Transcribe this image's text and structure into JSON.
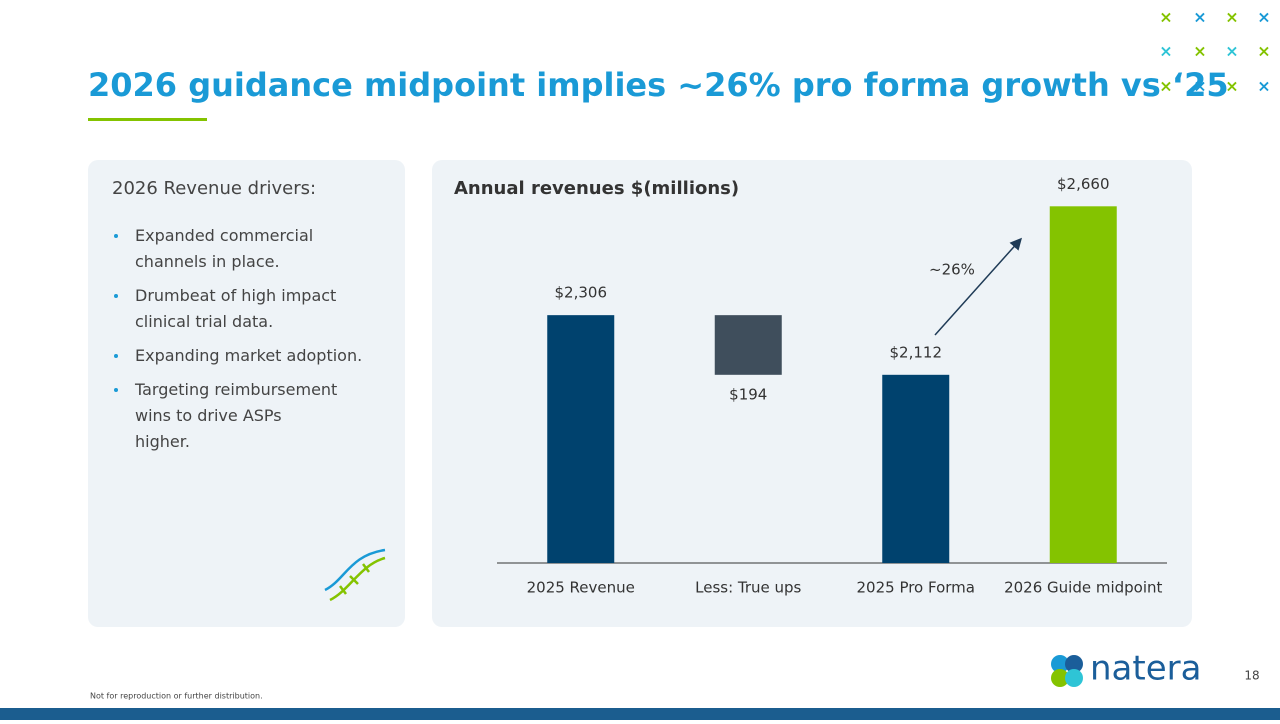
{
  "header": {
    "title": "2026 guidance midpoint implies ~26% pro forma growth vs ‘25"
  },
  "drivers": {
    "heading": "2026 Revenue drivers:",
    "items": [
      "Expanded commercial channels in place.",
      "Drumbeat of high impact clinical trial data.",
      "Expanding market adoption.",
      "Targeting reimbursement wins to  drive ASPs higher."
    ]
  },
  "chart_data": {
    "type": "waterfall",
    "title": "Annual revenues $(millions)",
    "categories": [
      "2025 Revenue",
      "Less: True ups",
      "2025 Pro Forma",
      "2026 Guide midpoint"
    ],
    "values": [
      2306,
      194,
      2112,
      2660
    ],
    "value_labels": [
      "$2,306",
      "$194",
      "$2,112",
      "$2,660"
    ],
    "measure": [
      "total",
      "decrease",
      "total",
      "total"
    ],
    "colors": [
      "#00426e",
      "#3f4e5c",
      "#00426e",
      "#84c300"
    ],
    "ylim": [
      1500,
      2700
    ],
    "annotations": [
      "~26%"
    ]
  },
  "footer": {
    "note": "Not for reproduction or further distribution.",
    "page": "18",
    "logo": "natera"
  }
}
